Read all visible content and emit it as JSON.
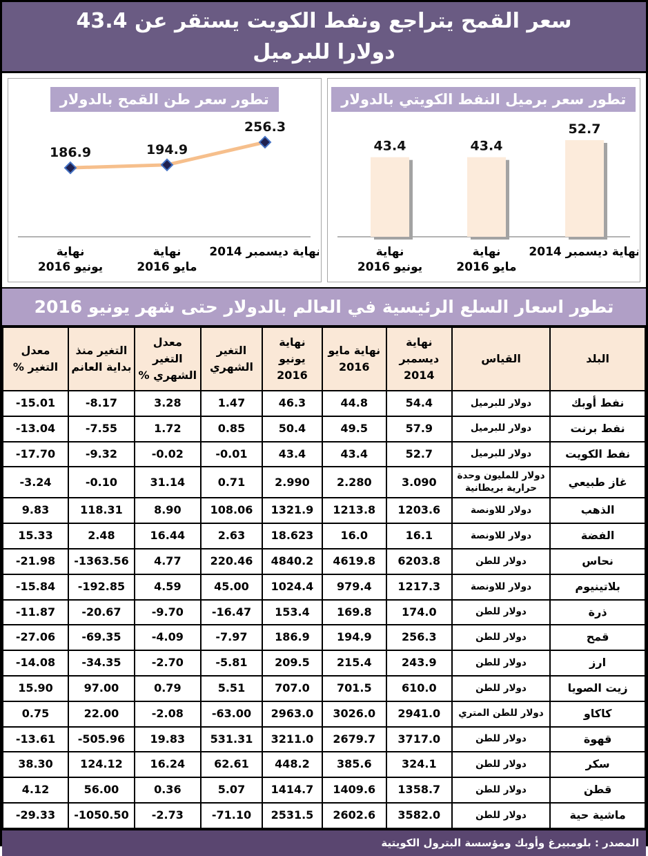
{
  "page": {
    "title": "سعر القمح يتراجع ونفط الكويت يستقر عن 43.4 دولارا للبرميل",
    "source_note": "المصدر : بلومبيرغ وأوبك ومؤسسة البترول الكويتية"
  },
  "colors": {
    "headline_band": "#6a5b83",
    "chart_title_highlight": "#b2a4ca",
    "table_band": "#b09fc6",
    "table_header": "#fae8d7",
    "footer_band": "#5a4670",
    "line_series": "#f6bf8c",
    "marker_fill": "#1f2150",
    "marker_stroke": "#4472c4",
    "bar_fill": "#fcebdb",
    "bar_shadow": "#a3a3a3",
    "axis": "#9a9a9a"
  },
  "chart_data": [
    {
      "type": "bar",
      "title": "تطور سعر برميل النفط الكويتي بالدولار",
      "categories": [
        "نهاية\nيونيو 2016",
        "نهاية\nمايو 2016",
        "نهاية ديسمبر 2014"
      ],
      "values": [
        43.4,
        43.4,
        52.7
      ],
      "data_labels": [
        "43.4",
        "43.4",
        "52.7"
      ],
      "x_order": "left-to-right",
      "ylim": [
        0,
        60
      ],
      "grid": false,
      "legend": false
    },
    {
      "type": "line",
      "title": "تطور سعر طن القمح بالدولار",
      "categories": [
        "نهاية\nيونيو 2016",
        "نهاية\nمايو 2016",
        "نهاية ديسمبر 2014"
      ],
      "values": [
        186.9,
        194.9,
        256.3
      ],
      "data_labels": [
        "186.9",
        "194.9",
        "256.3"
      ],
      "x_order": "left-to-right",
      "ylim": [
        0,
        280
      ],
      "grid": false,
      "legend": false
    }
  ],
  "table": {
    "title": "تطور اسعار السلع الرئيسية في العالم بالدولار حتى شهر يونيو 2016",
    "headers": [
      "البلد",
      "القياس",
      "نهاية ديسمبر 2014",
      "نهاية مايو 2016",
      "نهاية يونيو 2016",
      "التغير الشهري",
      "معدل التغير الشهري %",
      "التغير منذ بداية العانم",
      "معدل التغير %"
    ],
    "rows": [
      [
        "نفط أوبك",
        "دولار للبرميل",
        "54.4",
        "44.8",
        "46.3",
        "1.47",
        "3.28",
        "-8.17",
        "-15.01"
      ],
      [
        "نفط برنت",
        "دولار للبرميل",
        "57.9",
        "49.5",
        "50.4",
        "0.85",
        "1.72",
        "-7.55",
        "-13.04"
      ],
      [
        "نفط الكويت",
        "دولار للبرميل",
        "52.7",
        "43.4",
        "43.4",
        "-0.01",
        "-0.02",
        "-9.32",
        "-17.70"
      ],
      [
        "غاز طبيعي",
        "دولار للمليون وحدة حرارية بريطانية",
        "3.090",
        "2.280",
        "2.990",
        "0.71",
        "31.14",
        "-0.10",
        "-3.24"
      ],
      [
        "الذهب",
        "دولار للاونصة",
        "1203.6",
        "1213.8",
        "1321.9",
        "108.06",
        "8.90",
        "118.31",
        "9.83"
      ],
      [
        "الفضة",
        "دولار للاونصة",
        "16.1",
        "16.0",
        "18.623",
        "2.63",
        "16.44",
        "2.48",
        "15.33"
      ],
      [
        "نحاس",
        "دولار للطن",
        "6203.8",
        "4619.8",
        "4840.2",
        "220.46",
        "4.77",
        "-1363.56",
        "-21.98"
      ],
      [
        "بلاتينيوم",
        "دولار للاونصة",
        "1217.3",
        "979.4",
        "1024.4",
        "45.00",
        "4.59",
        "-192.85",
        "-15.84"
      ],
      [
        "ذرة",
        "دولار للطن",
        "174.0",
        "169.8",
        "153.4",
        "-16.47",
        "-9.70",
        "-20.67",
        "-11.87"
      ],
      [
        "قمح",
        "دولار للطن",
        "256.3",
        "194.9",
        "186.9",
        "-7.97",
        "-4.09",
        "-69.35",
        "-27.06"
      ],
      [
        "ارز",
        "دولار للطن",
        "243.9",
        "215.4",
        "209.5",
        "-5.81",
        "-2.70",
        "-34.35",
        "-14.08"
      ],
      [
        "زيت الصويا",
        "دولار للطن",
        "610.0",
        "701.5",
        "707.0",
        "5.51",
        "0.79",
        "97.00",
        "15.90"
      ],
      [
        "كاكاو",
        "دولار للطن المتري",
        "2941.0",
        "3026.0",
        "2963.0",
        "-63.00",
        "-2.08",
        "22.00",
        "0.75"
      ],
      [
        "قهوة",
        "دولار للطن",
        "3717.0",
        "2679.7",
        "3211.0",
        "531.31",
        "19.83",
        "-505.96",
        "-13.61"
      ],
      [
        "سكر",
        "دولار للطن",
        "324.1",
        "385.6",
        "448.2",
        "62.61",
        "16.24",
        "124.12",
        "38.30"
      ],
      [
        "قطن",
        "دولار للطن",
        "1358.7",
        "1409.6",
        "1414.7",
        "5.07",
        "0.36",
        "56.00",
        "4.12"
      ],
      [
        "ماشية حية",
        "دولار للطن",
        "3582.0",
        "2602.6",
        "2531.5",
        "-71.10",
        "-2.73",
        "-1050.50",
        "-29.33"
      ]
    ]
  }
}
